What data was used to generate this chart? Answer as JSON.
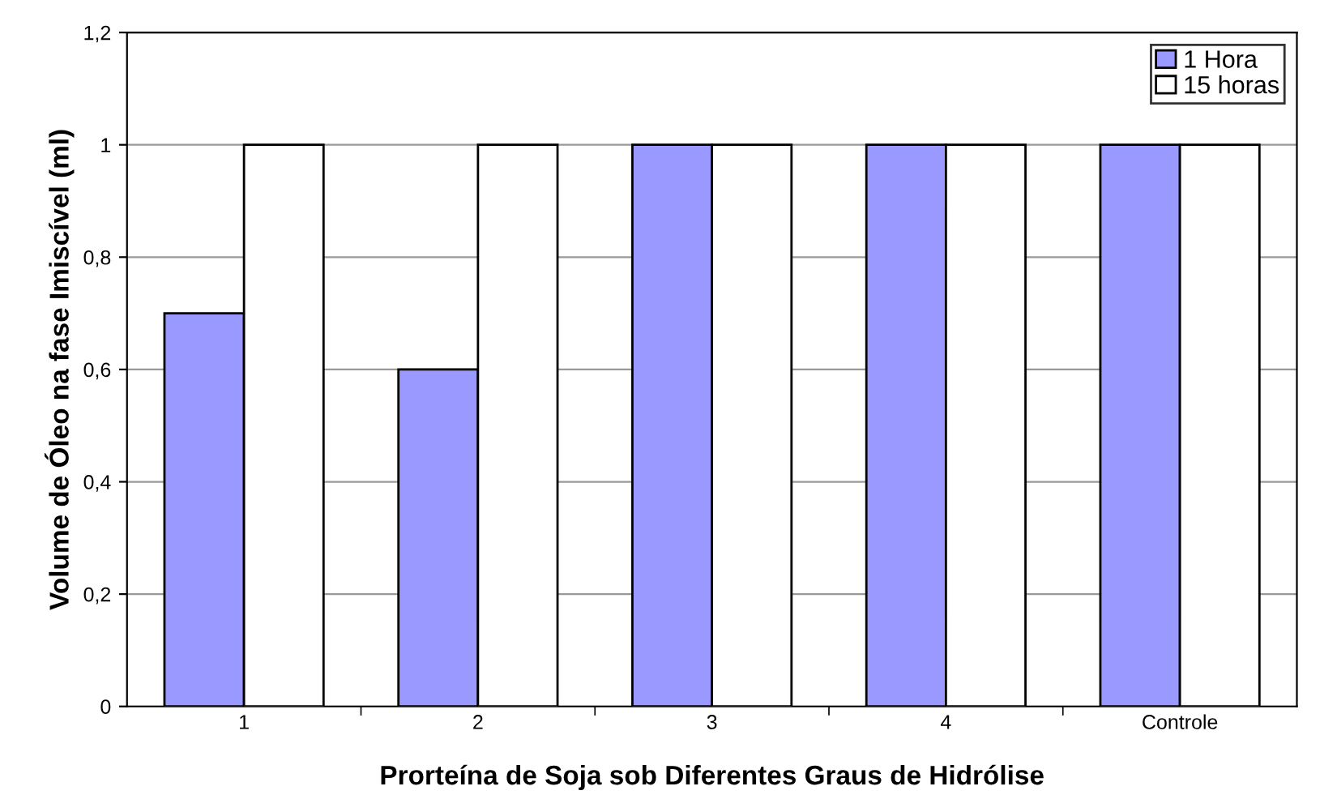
{
  "chart_data": {
    "type": "bar",
    "xlabel": "Prorteína de Soja sob Diferentes Graus de Hidrólise",
    "ylabel": "Volume de Óleo na fase Imiscível (ml)",
    "categories": [
      "1",
      "2",
      "3",
      "4",
      "Controle"
    ],
    "series": [
      {
        "name": "1 Hora",
        "color": "#9999ff",
        "values": [
          0.7,
          0.6,
          1,
          1,
          1
        ]
      },
      {
        "name": "15 horas",
        "color": "#ffffff",
        "values": [
          1,
          1,
          1,
          1,
          1
        ]
      }
    ],
    "ylim": [
      0,
      1.2
    ],
    "yticks": [
      0,
      {
        "value": 0.2,
        "label": "0,2"
      },
      {
        "value": 0.4,
        "label": "0,4"
      },
      {
        "value": 0.6,
        "label": "0,6"
      },
      {
        "value": 0.8,
        "label": "0,8"
      },
      1,
      {
        "value": 1.2,
        "label": "1,2"
      }
    ],
    "grid": "y",
    "legend": "top right"
  }
}
